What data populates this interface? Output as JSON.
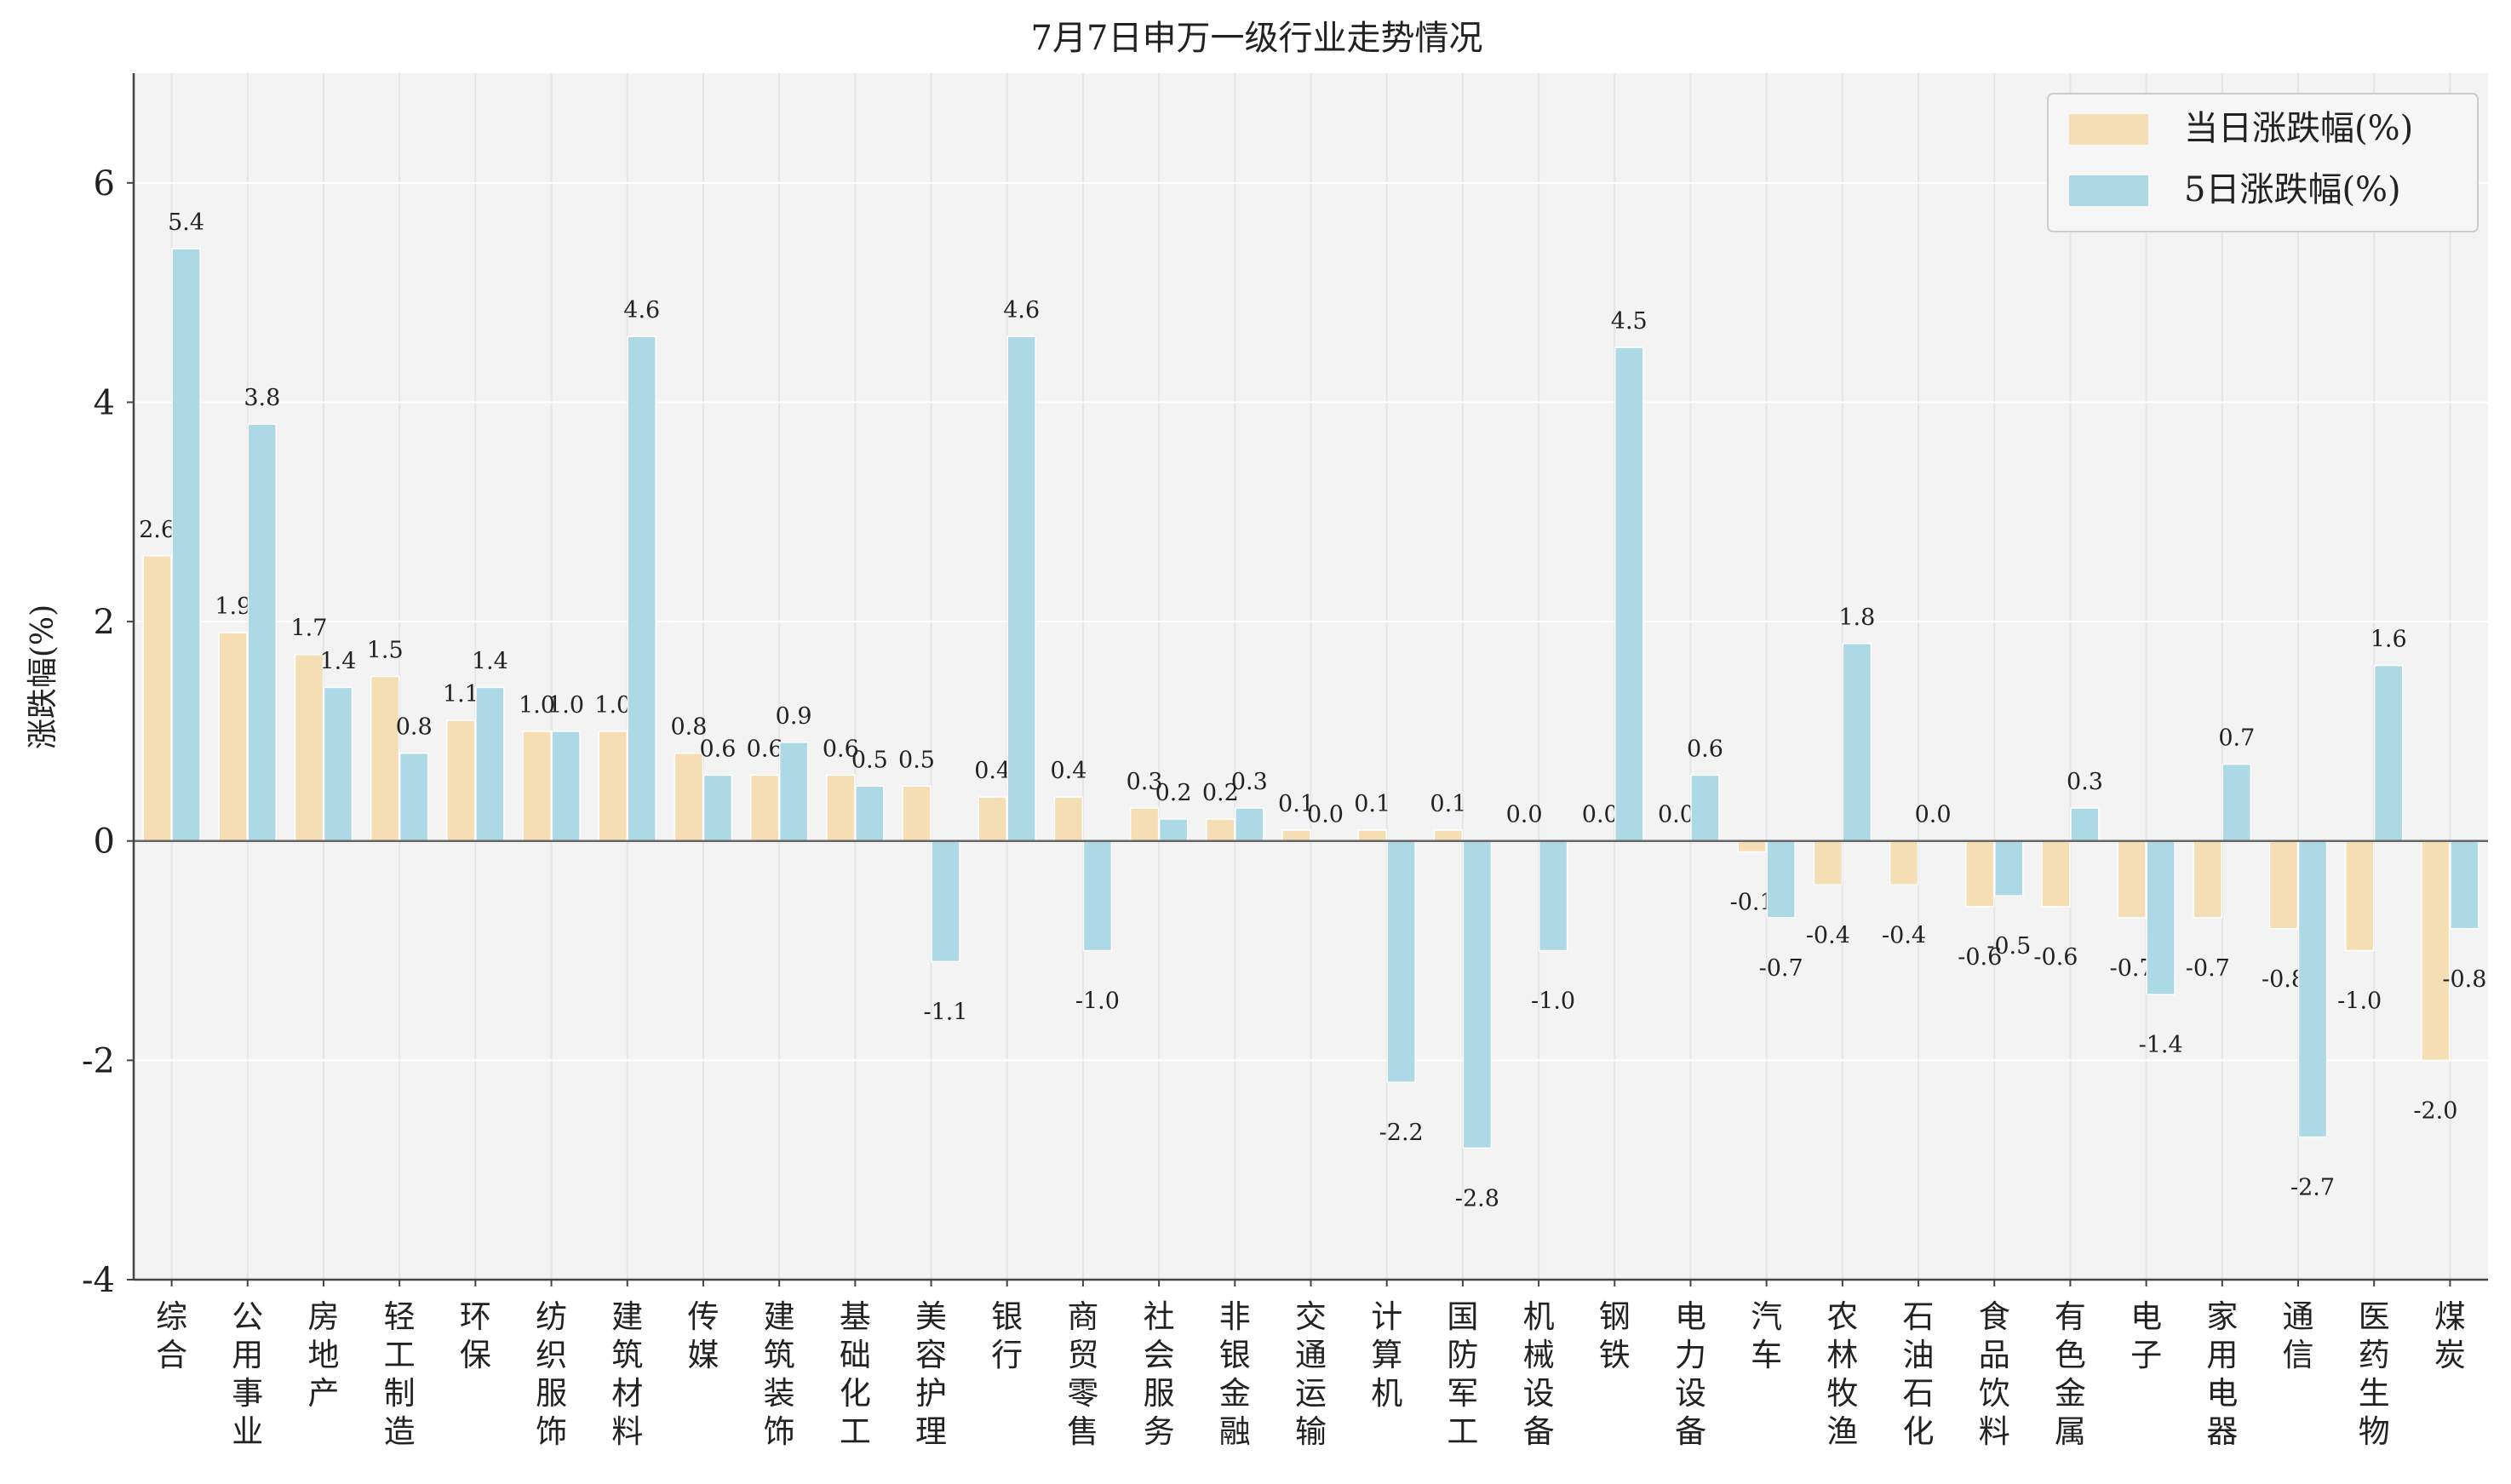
{
  "chart_data": {
    "type": "bar",
    "title": "7月7日申万一级行业走势情况",
    "ylabel": "涨跌幅(%)",
    "xlabel": "",
    "ylim": [
      -4,
      7
    ],
    "yticks": [
      -4,
      -2,
      0,
      2,
      4,
      6
    ],
    "grid": true,
    "legend_position": "top-right",
    "categories": [
      "综合",
      "公用事业",
      "房地产",
      "轻工制造",
      "环保",
      "纺织服饰",
      "建筑材料",
      "传媒",
      "建筑装饰",
      "基础化工",
      "美容护理",
      "银行",
      "商贸零售",
      "社会服务",
      "非银金融",
      "交通运输",
      "计算机",
      "国防军工",
      "机械设备",
      "钢铁",
      "电力设备",
      "汽车",
      "农林牧渔",
      "石油石化",
      "食品饮料",
      "有色金属",
      "电子",
      "家用电器",
      "通信",
      "医药生物",
      "煤炭"
    ],
    "series": [
      {
        "name": "当日涨跌幅(%)",
        "color": "#f5deb3",
        "values": [
          2.6,
          1.9,
          1.7,
          1.5,
          1.1,
          1.0,
          1.0,
          0.8,
          0.6,
          0.6,
          0.5,
          0.4,
          0.4,
          0.3,
          0.2,
          0.1,
          0.1,
          0.1,
          0.0,
          0.0,
          0.0,
          -0.1,
          -0.4,
          -0.4,
          -0.6,
          -0.6,
          -0.7,
          -0.7,
          -0.8,
          -1.0,
          -2.0
        ]
      },
      {
        "name": "5日涨跌幅(%)",
        "color": "#add8e6",
        "values": [
          5.4,
          3.8,
          1.4,
          0.8,
          1.4,
          1.0,
          4.6,
          0.6,
          0.9,
          0.5,
          -1.1,
          4.6,
          -1.0,
          0.2,
          0.3,
          0.0,
          -2.2,
          -2.8,
          -1.0,
          4.5,
          0.6,
          -0.7,
          1.8,
          0.0,
          -0.5,
          0.3,
          -1.4,
          0.7,
          -2.7,
          1.6,
          -0.8
        ]
      }
    ]
  }
}
